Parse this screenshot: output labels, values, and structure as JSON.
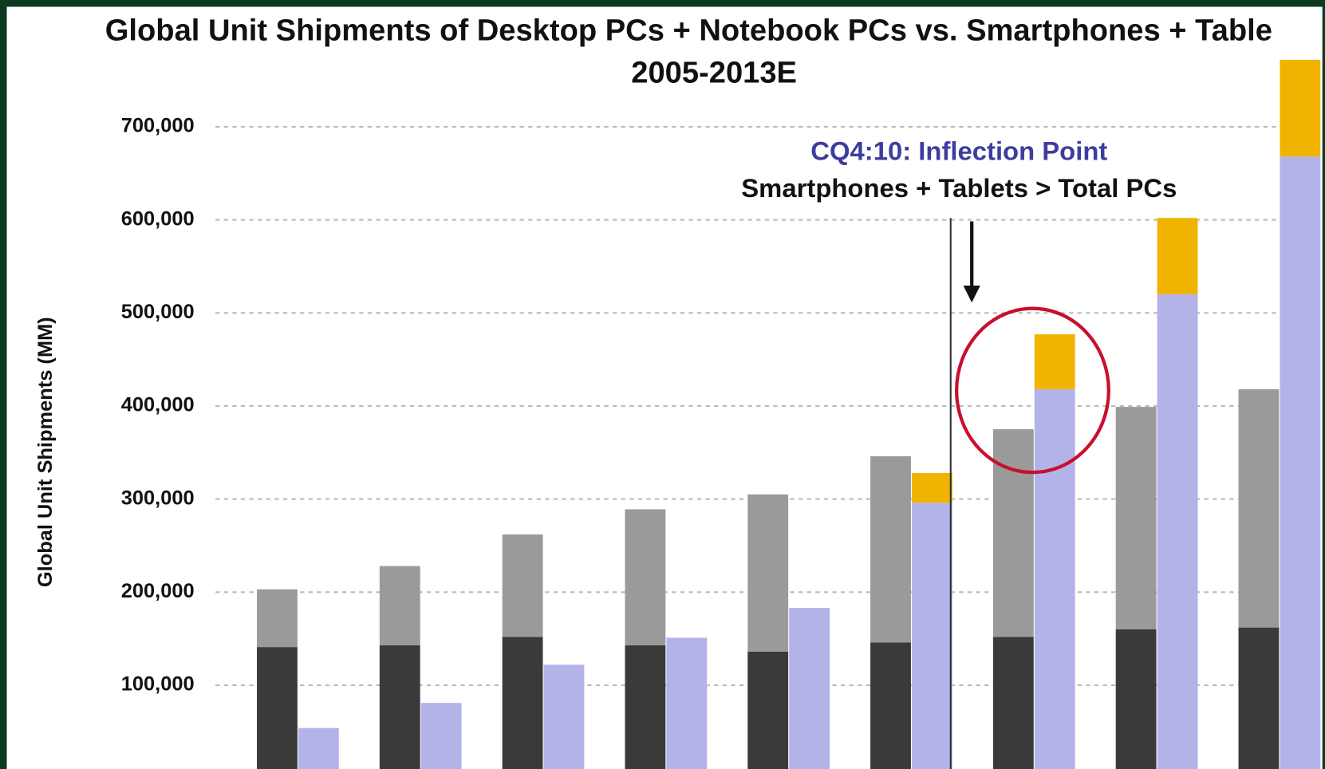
{
  "chart_data": {
    "type": "bar",
    "title": "Global Unit Shipments of Desktop PCs + Notebook PCs vs. Smartphones + Table",
    "subtitle": "2005-2013E",
    "y_label": "Global Unit Shipments (MM)",
    "annotations": [
      "CQ4:10: Inflection Point",
      "Smartphones + Tablets > Total PCs"
    ],
    "categories": [
      null,
      null,
      null,
      null,
      null,
      null,
      null,
      null,
      null
    ],
    "series": [
      {
        "color": "#3a3a3a",
        "stack": "pc",
        "values": [
          141000,
          143000,
          152000,
          143000,
          136000,
          146000,
          152000,
          160000,
          162000
        ]
      },
      {
        "color": "#9a9a9a",
        "stack": "pc",
        "values": [
          62000,
          85000,
          110000,
          146000,
          169000,
          200000,
          223000,
          239000,
          256000
        ]
      },
      {
        "color": "#b3b3ea",
        "stack": "mobile",
        "values": [
          54000,
          81000,
          122000,
          151000,
          183000,
          296000,
          418000,
          520000,
          668000
        ]
      },
      {
        "color": "#f0b400",
        "stack": "mobile",
        "values": [
          0,
          0,
          0,
          0,
          0,
          32000,
          59000,
          82000,
          104000
        ]
      }
    ],
    "ylim": [
      0,
      700000
    ],
    "yticks": [
      {
        "value": 100000,
        "label": "100,000"
      },
      {
        "value": 200000,
        "label": "200,000"
      },
      {
        "value": 300000,
        "label": "300,000"
      },
      {
        "value": 400000,
        "label": "400,000"
      },
      {
        "value": 500000,
        "label": "500,000"
      },
      {
        "value": 600000,
        "label": "600,000"
      },
      {
        "value": 700000,
        "label": "700,000"
      }
    ],
    "grid": true
  }
}
